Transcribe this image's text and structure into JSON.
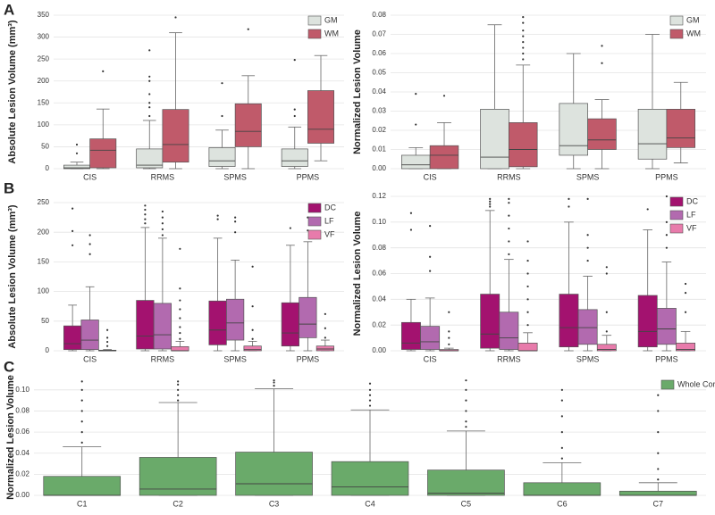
{
  "panel_labels": [
    "A",
    "B",
    "C"
  ],
  "chart_data": [
    {
      "type": "box",
      "ylabel": "Absolute Lesion Volume (mm³)",
      "categories": [
        "CIS",
        "RRMS",
        "SPMS",
        "PPMS"
      ],
      "ylim": [
        0,
        350
      ],
      "yticks": [
        0,
        50,
        100,
        150,
        200,
        250,
        300,
        350
      ],
      "grid": true,
      "legend": "upper right",
      "series": [
        {
          "name": "GM",
          "color": "#dde3de",
          "boxes": [
            {
              "whislo": 0,
              "q1": 0,
              "med": 2,
              "q3": 8,
              "whishi": 15,
              "fliers": [
                35,
                55
              ]
            },
            {
              "whislo": 0,
              "q1": 2,
              "med": 8,
              "q3": 45,
              "whishi": 110,
              "fliers": [
                120,
                140,
                150,
                170,
                200,
                210,
                270
              ]
            },
            {
              "whislo": 0,
              "q1": 5,
              "med": 18,
              "q3": 48,
              "whishi": 88,
              "fliers": [
                120,
                195
              ]
            },
            {
              "whislo": 0,
              "q1": 5,
              "med": 18,
              "q3": 45,
              "whishi": 95,
              "fliers": [
                120,
                135,
                248
              ]
            }
          ]
        },
        {
          "name": "WM",
          "color": "#c05a6a",
          "boxes": [
            {
              "whislo": 0,
              "q1": 2,
              "med": 42,
              "q3": 68,
              "whishi": 136,
              "fliers": [
                222
              ]
            },
            {
              "whislo": 0,
              "q1": 15,
              "med": 55,
              "q3": 135,
              "whishi": 310,
              "fliers": [
                345
              ]
            },
            {
              "whislo": 0,
              "q1": 50,
              "med": 85,
              "q3": 148,
              "whishi": 212,
              "fliers": [
                318
              ]
            },
            {
              "whislo": 18,
              "q1": 58,
              "med": 90,
              "q3": 178,
              "whishi": 258,
              "fliers": []
            }
          ]
        }
      ]
    },
    {
      "type": "box",
      "ylabel": "Normalized Lesion Volume",
      "categories": [
        "CIS",
        "RRMS",
        "SPMS",
        "PPMS"
      ],
      "ylim": [
        0,
        0.08
      ],
      "yticks": [
        {
          "value": 0,
          "label": "0.00"
        },
        {
          "value": 0.01,
          "label": "0.01"
        },
        {
          "value": 0.02,
          "label": "0.02"
        },
        {
          "value": 0.03,
          "label": "0.03"
        },
        {
          "value": 0.04,
          "label": "0.04"
        },
        {
          "value": 0.05,
          "label": "0.05"
        },
        {
          "value": 0.06,
          "label": "0.06"
        },
        {
          "value": 0.07,
          "label": "0.07"
        },
        {
          "value": 0.08,
          "label": "0.08"
        }
      ],
      "grid": true,
      "legend": "upper right",
      "series": [
        {
          "name": "GM",
          "color": "#dde3de",
          "boxes": [
            {
              "whislo": 0,
              "q1": 0,
              "med": 0.002,
              "q3": 0.007,
              "whishi": 0.011,
              "fliers": [
                0.023,
                0.039
              ]
            },
            {
              "whislo": 0,
              "q1": 0,
              "med": 0.006,
              "q3": 0.031,
              "whishi": 0.075,
              "fliers": []
            },
            {
              "whislo": 0,
              "q1": 0.007,
              "med": 0.012,
              "q3": 0.034,
              "whishi": 0.06,
              "fliers": []
            },
            {
              "whislo": 0,
              "q1": 0.005,
              "med": 0.013,
              "q3": 0.031,
              "whishi": 0.07,
              "fliers": []
            }
          ]
        },
        {
          "name": "WM",
          "color": "#c05a6a",
          "boxes": [
            {
              "whislo": 0,
              "q1": 0,
              "med": 0.007,
              "q3": 0.012,
              "whishi": 0.024,
              "fliers": [
                0.038
              ]
            },
            {
              "whislo": 0,
              "q1": 0.001,
              "med": 0.01,
              "q3": 0.024,
              "whishi": 0.054,
              "fliers": [
                0.057,
                0.06,
                0.063,
                0.066,
                0.069,
                0.072,
                0.076,
                0.079
              ]
            },
            {
              "whislo": 0,
              "q1": 0.01,
              "med": 0.015,
              "q3": 0.026,
              "whishi": 0.036,
              "fliers": [
                0.055,
                0.064
              ]
            },
            {
              "whislo": 0.003,
              "q1": 0.011,
              "med": 0.016,
              "q3": 0.031,
              "whishi": 0.045,
              "fliers": []
            }
          ]
        }
      ]
    },
    {
      "type": "box",
      "ylabel": "Absolute Lesion Volume (mm³)",
      "categories": [
        "CIS",
        "RRMS",
        "SPMS",
        "PPMS"
      ],
      "ylim": [
        0,
        250
      ],
      "yticks": [
        0,
        50,
        100,
        150,
        200,
        250
      ],
      "grid": true,
      "legend": "upper right",
      "series": [
        {
          "name": "DC",
          "color": "#a3126f",
          "boxes": [
            {
              "whislo": 0,
              "q1": 2,
              "med": 12,
              "q3": 42,
              "whishi": 77,
              "fliers": [
                178,
                202,
                240
              ]
            },
            {
              "whislo": 0,
              "q1": 3,
              "med": 25,
              "q3": 85,
              "whishi": 208,
              "fliers": [
                215,
                222,
                230,
                238,
                245
              ]
            },
            {
              "whislo": 0,
              "q1": 10,
              "med": 35,
              "q3": 84,
              "whishi": 190,
              "fliers": [
                222,
                228
              ]
            },
            {
              "whislo": 0,
              "q1": 8,
              "med": 30,
              "q3": 81,
              "whishi": 178,
              "fliers": [
                207
              ]
            }
          ]
        },
        {
          "name": "LF",
          "color": "#b26aaf",
          "boxes": [
            {
              "whislo": 0,
              "q1": 2,
              "med": 18,
              "q3": 52,
              "whishi": 108,
              "fliers": [
                163,
                180,
                195
              ]
            },
            {
              "whislo": 0,
              "q1": 3,
              "med": 27,
              "q3": 80,
              "whishi": 190,
              "fliers": [
                195,
                205,
                215,
                225,
                235
              ]
            },
            {
              "whislo": 0,
              "q1": 18,
              "med": 47,
              "q3": 87,
              "whishi": 153,
              "fliers": [
                200,
                218,
                225
              ]
            },
            {
              "whislo": 0,
              "q1": 22,
              "med": 45,
              "q3": 90,
              "whishi": 184,
              "fliers": [
                203,
                225
              ]
            }
          ]
        },
        {
          "name": "VF",
          "color": "#e87bab",
          "boxes": [
            {
              "whislo": 0,
              "q1": 0,
              "med": 0,
              "q3": 1,
              "whishi": 2,
              "fliers": [
                8,
                15,
                22,
                35
              ]
            },
            {
              "whislo": 0,
              "q1": 0,
              "med": 0,
              "q3": 7,
              "whishi": 16,
              "fliers": [
                20,
                30,
                40,
                55,
                70,
                85,
                105,
                172
              ]
            },
            {
              "whislo": 0,
              "q1": 0,
              "med": 2,
              "q3": 8,
              "whishi": 16,
              "fliers": [
                20,
                35,
                75,
                142
              ]
            },
            {
              "whislo": 0,
              "q1": 0,
              "med": 3,
              "q3": 8,
              "whishi": 18,
              "fliers": [
                22,
                38,
                62
              ]
            }
          ]
        }
      ]
    },
    {
      "type": "box",
      "ylabel": "Normalized Lesion Volume",
      "categories": [
        "CIS",
        "RRMS",
        "SPMS",
        "PPMS"
      ],
      "ylim": [
        0,
        0.12
      ],
      "yticks": [
        {
          "value": 0,
          "label": "0.00"
        },
        {
          "value": 0.02,
          "label": "0.02"
        },
        {
          "value": 0.04,
          "label": "0.04"
        },
        {
          "value": 0.06,
          "label": "0.06"
        },
        {
          "value": 0.08,
          "label": "0.08"
        },
        {
          "value": 0.1,
          "label": "0.10"
        },
        {
          "value": 0.12,
          "label": "0.12"
        }
      ],
      "grid": true,
      "legend": "upper right",
      "series": [
        {
          "name": "DC",
          "color": "#a3126f",
          "boxes": [
            {
              "whislo": 0,
              "q1": 0.001,
              "med": 0.006,
              "q3": 0.022,
              "whishi": 0.04,
              "fliers": [
                0.094,
                0.107
              ]
            },
            {
              "whislo": 0,
              "q1": 0.002,
              "med": 0.013,
              "q3": 0.044,
              "whishi": 0.109,
              "fliers": [
                0.112,
                0.114,
                0.116,
                0.118
              ]
            },
            {
              "whislo": 0,
              "q1": 0.003,
              "med": 0.018,
              "q3": 0.044,
              "whishi": 0.1,
              "fliers": [
                0.112,
                0.118
              ]
            },
            {
              "whislo": 0,
              "q1": 0.003,
              "med": 0.015,
              "q3": 0.043,
              "whishi": 0.094,
              "fliers": [
                0.11
              ]
            }
          ]
        },
        {
          "name": "LF",
          "color": "#b26aaf",
          "boxes": [
            {
              "whislo": 0,
              "q1": 0.001,
              "med": 0.007,
              "q3": 0.019,
              "whishi": 0.041,
              "fliers": [
                0.062,
                0.073,
                0.097
              ]
            },
            {
              "whislo": 0,
              "q1": 0.001,
              "med": 0.01,
              "q3": 0.03,
              "whishi": 0.071,
              "fliers": [
                0.075,
                0.085,
                0.095,
                0.105,
                0.115,
                0.118
              ]
            },
            {
              "whislo": 0,
              "q1": 0.005,
              "med": 0.018,
              "q3": 0.032,
              "whishi": 0.058,
              "fliers": [
                0.07,
                0.08,
                0.09,
                0.118
              ]
            },
            {
              "whislo": 0,
              "q1": 0.005,
              "med": 0.017,
              "q3": 0.033,
              "whishi": 0.069,
              "fliers": [
                0.08,
                0.09,
                0.1,
                0.12
              ]
            }
          ]
        },
        {
          "name": "VF",
          "color": "#e87bab",
          "boxes": [
            {
              "whislo": 0,
              "q1": 0,
              "med": 0,
              "q3": 0.001,
              "whishi": 0.002,
              "fliers": [
                0.005,
                0.01,
                0.015,
                0.03
              ]
            },
            {
              "whislo": 0,
              "q1": 0,
              "med": 0,
              "q3": 0.006,
              "whishi": 0.014,
              "fliers": [
                0.02,
                0.03,
                0.04,
                0.05,
                0.06,
                0.07,
                0.085
              ]
            },
            {
              "whislo": 0,
              "q1": 0,
              "med": 0.001,
              "q3": 0.005,
              "whishi": 0.012,
              "fliers": [
                0.015,
                0.03,
                0.06,
                0.065
              ]
            },
            {
              "whislo": 0,
              "q1": 0,
              "med": 0.001,
              "q3": 0.006,
              "whishi": 0.015,
              "fliers": [
                0.03,
                0.045,
                0.052
              ]
            }
          ]
        }
      ]
    },
    {
      "type": "box",
      "ylabel": "Normalized Lesion Volume",
      "categories": [
        "C1",
        "C2",
        "C3",
        "C4",
        "C5",
        "C6",
        "C7"
      ],
      "ylim": [
        0,
        0.11
      ],
      "yticks": [
        {
          "value": 0,
          "label": "0.00"
        },
        {
          "value": 0.02,
          "label": "0.02"
        },
        {
          "value": 0.04,
          "label": "0.04"
        },
        {
          "value": 0.06,
          "label": "0.06"
        },
        {
          "value": 0.08,
          "label": "0.08"
        },
        {
          "value": 0.1,
          "label": "0.10"
        }
      ],
      "grid": true,
      "legend": "upper right",
      "series": [
        {
          "name": "Whole Cord",
          "color": "#6aaa6a",
          "boxes": [
            {
              "whislo": 0,
              "q1": 0,
              "med": 0,
              "q3": 0.018,
              "whishi": 0.046,
              "fliers": [
                0.05,
                0.06,
                0.07,
                0.08,
                0.09,
                0.1,
                0.108
              ]
            },
            {
              "whislo": 0,
              "q1": 0,
              "med": 0.006,
              "q3": 0.036,
              "whishi": 0.088,
              "fliers": [
                0.09,
                0.095,
                0.1,
                0.105,
                0.108
              ]
            },
            {
              "whislo": 0,
              "q1": 0,
              "med": 0.011,
              "q3": 0.041,
              "whishi": 0.101,
              "fliers": [
                0.104,
                0.107,
                0.109
              ]
            },
            {
              "whislo": 0,
              "q1": 0,
              "med": 0.008,
              "q3": 0.032,
              "whishi": 0.081,
              "fliers": [
                0.085,
                0.09,
                0.095,
                0.1,
                0.106
              ]
            },
            {
              "whislo": 0,
              "q1": 0,
              "med": 0.002,
              "q3": 0.024,
              "whishi": 0.061,
              "fliers": [
                0.065,
                0.07,
                0.08,
                0.09,
                0.1,
                0.109
              ]
            },
            {
              "whislo": 0,
              "q1": 0,
              "med": 0,
              "q3": 0.012,
              "whishi": 0.031,
              "fliers": [
                0.035,
                0.045,
                0.06,
                0.075,
                0.09,
                0.1
              ]
            },
            {
              "whislo": 0,
              "q1": 0,
              "med": 0,
              "q3": 0.004,
              "whishi": 0.012,
              "fliers": [
                0.015,
                0.025,
                0.04,
                0.06,
                0.08,
                0.095
              ]
            }
          ]
        }
      ]
    }
  ]
}
